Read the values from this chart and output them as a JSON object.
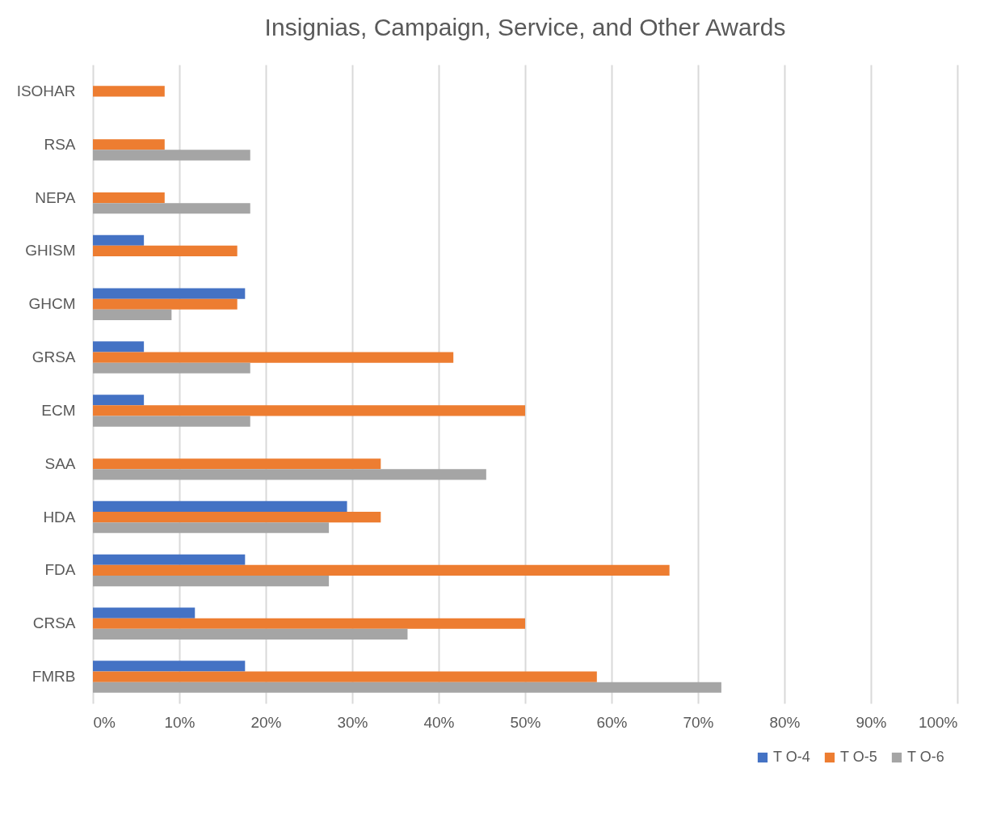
{
  "chart_data": {
    "type": "bar",
    "orientation": "horizontal",
    "title": "Insignias, Campaign, Service, and Other Awards",
    "categories": [
      "ISOHAR",
      "RSA",
      "NEPA",
      "GHISM",
      "GHCM",
      "GRSA",
      "ECM",
      "SAA",
      "HDA",
      "FDA",
      "CRSA",
      "FMRB"
    ],
    "series": [
      {
        "name": "T O-4",
        "color": "#4472c4",
        "values": [
          null,
          null,
          null,
          5.9,
          17.6,
          5.9,
          5.9,
          null,
          29.4,
          17.6,
          11.8,
          17.6
        ]
      },
      {
        "name": "T O-5",
        "color": "#ed7d31",
        "values": [
          8.3,
          8.3,
          8.3,
          16.7,
          16.7,
          41.7,
          50,
          33.3,
          33.3,
          66.7,
          50,
          58.3
        ]
      },
      {
        "name": "T O-6",
        "color": "#a5a5a5",
        "values": [
          null,
          18.2,
          18.2,
          null,
          9.1,
          18.2,
          18.2,
          45.5,
          27.3,
          27.3,
          36.4,
          72.7
        ]
      }
    ],
    "xlim": [
      0,
      100
    ],
    "xticks": [
      {
        "value": 0,
        "label": "0%"
      },
      {
        "value": 10,
        "label": "10%"
      },
      {
        "value": 20,
        "label": "20%"
      },
      {
        "value": 30,
        "label": "30%"
      },
      {
        "value": 40,
        "label": "40%"
      },
      {
        "value": 50,
        "label": "50%"
      },
      {
        "value": 60,
        "label": "60%"
      },
      {
        "value": 70,
        "label": "70%"
      },
      {
        "value": 80,
        "label": "80%"
      },
      {
        "value": 90,
        "label": "90%"
      },
      {
        "value": 100,
        "label": "100%"
      }
    ],
    "grid": "x",
    "legend": "bottom right"
  }
}
